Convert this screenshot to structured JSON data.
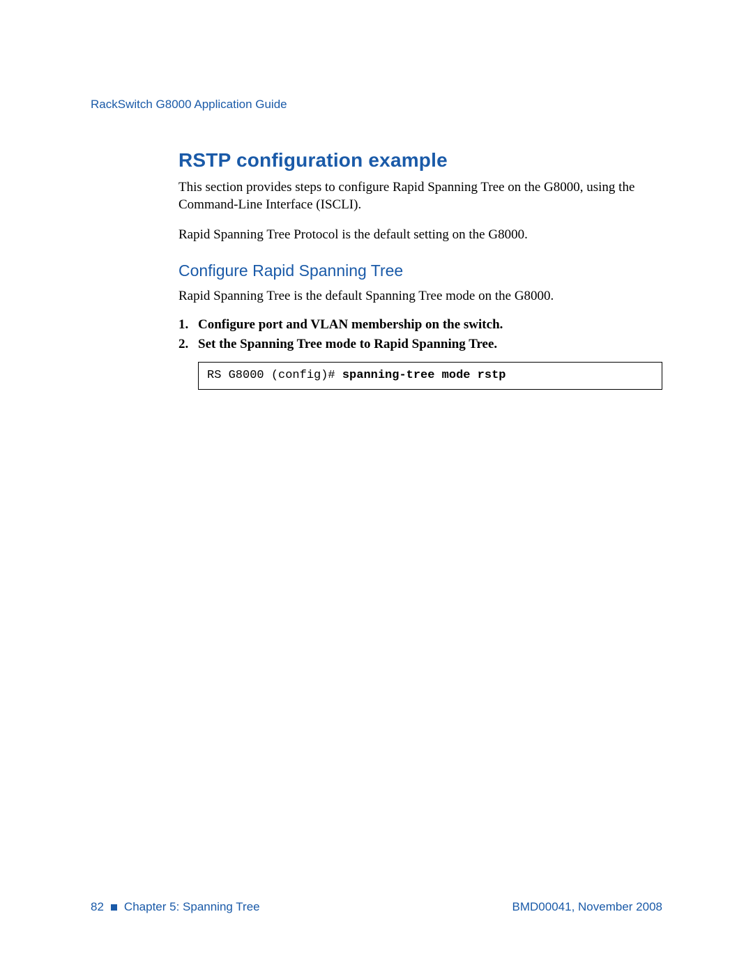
{
  "colors": {
    "brand_blue": "#1a5aa8",
    "text_black": "#000000",
    "page_bg": "#ffffff",
    "codebox_border": "#000000"
  },
  "typography": {
    "heading_font": "Segoe UI / Myriad Pro (sans-serif)",
    "body_font": "Times New Roman (serif)",
    "code_font": "Courier New (monospace)",
    "h1_size_pt": 21,
    "h2_size_pt": 17,
    "body_size_pt": 14,
    "code_size_pt": 13,
    "running_head_size_pt": 13
  },
  "header": {
    "running_head": "RackSwitch G8000  Application Guide"
  },
  "section": {
    "title": "RSTP configuration example",
    "intro_paragraphs": [
      "This section provides steps to configure Rapid Spanning Tree on the G8000, using the Command-Line Interface (ISCLI).",
      "Rapid Spanning Tree Protocol is the default setting on the G8000."
    ],
    "subsection": {
      "title": "Configure Rapid Spanning Tree",
      "lead": "Rapid Spanning Tree is the default Spanning Tree mode on the G8000.",
      "steps": [
        {
          "num": "1.",
          "text": "Configure port and VLAN membership on the switch."
        },
        {
          "num": "2.",
          "text": "Set the Spanning Tree mode to Rapid Spanning Tree."
        }
      ],
      "code": {
        "prompt": "RS G8000 (config)# ",
        "command": "spanning-tree mode rstp"
      }
    }
  },
  "footer": {
    "page_number": "82",
    "chapter": "Chapter 5:  Spanning Tree",
    "doc_id": "BMD00041, November 2008"
  }
}
